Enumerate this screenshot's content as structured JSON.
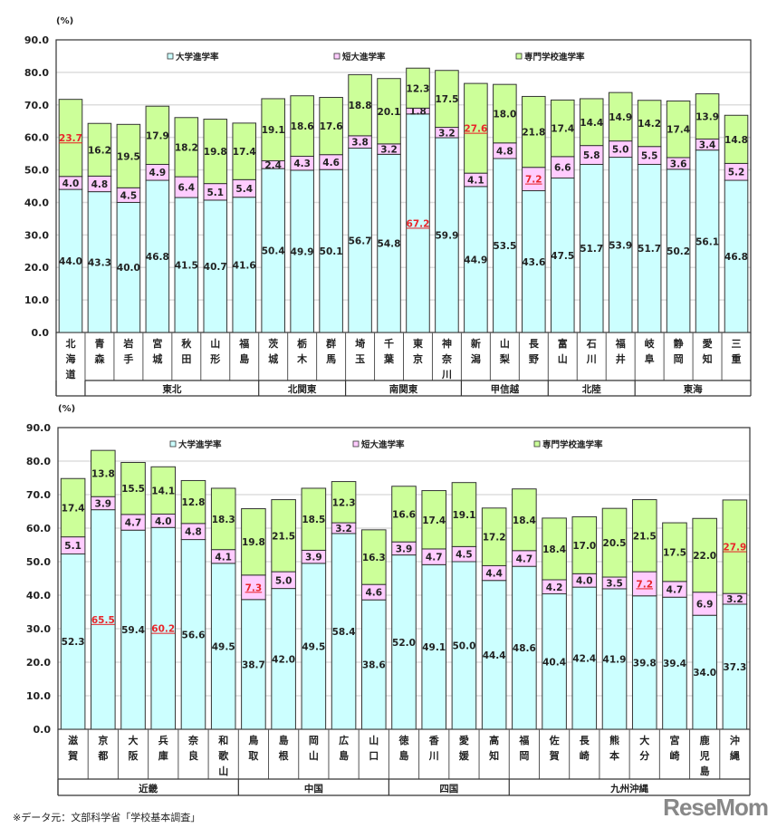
{
  "colors": {
    "university": "#ccffff",
    "junior": "#ffccff",
    "vocational": "#ccff99",
    "highlight": "#e8262b",
    "border": "#222222"
  },
  "footnote": "※データ元：文部科学省「学校基本調査」",
  "logo": "ReseMom",
  "chart_data": [
    {
      "type": "bar",
      "stacked": true,
      "ylabel": "(%)",
      "ylim": [
        0,
        90
      ],
      "yticks": [
        "0.0",
        "10.0",
        "20.0",
        "30.0",
        "40.0",
        "50.0",
        "60.0",
        "70.0",
        "80.0",
        "90.0"
      ],
      "grid": true,
      "legend_placement": "top",
      "categories": [
        "北海道",
        "青森",
        "岩手",
        "宮城",
        "秋田",
        "山形",
        "福島",
        "茨城",
        "栃木",
        "群馬",
        "埼玉",
        "千葉",
        "東京",
        "神奈川",
        "新潟",
        "山梨",
        "長野",
        "富山",
        "石川",
        "福井",
        "岐阜",
        "静岡",
        "愛知",
        "三重"
      ],
      "groups": [
        {
          "name": "",
          "count": 1
        },
        {
          "name": "東北",
          "count": 6
        },
        {
          "name": "北関東",
          "count": 3
        },
        {
          "name": "南関東",
          "count": 4
        },
        {
          "name": "甲信越",
          "count": 3
        },
        {
          "name": "北陸",
          "count": 3
        },
        {
          "name": "東海",
          "count": 4
        }
      ],
      "series": [
        {
          "name": "大学進学率",
          "values": [
            44.0,
            43.3,
            40.0,
            46.8,
            41.5,
            40.7,
            41.6,
            50.4,
            49.9,
            50.1,
            56.7,
            54.8,
            67.2,
            59.9,
            44.9,
            53.5,
            43.6,
            47.5,
            51.7,
            53.9,
            51.7,
            50.2,
            56.1,
            46.8
          ]
        },
        {
          "name": "短大進学率",
          "values": [
            4.0,
            4.8,
            4.5,
            4.9,
            6.4,
            5.1,
            5.4,
            2.4,
            4.3,
            4.6,
            3.8,
            3.2,
            1.8,
            3.2,
            4.1,
            4.8,
            7.2,
            6.6,
            5.8,
            5.0,
            5.5,
            3.6,
            3.4,
            5.2
          ]
        },
        {
          "name": "専門学校進学率",
          "values": [
            23.7,
            16.2,
            19.5,
            17.9,
            18.2,
            19.8,
            17.4,
            19.1,
            18.6,
            17.6,
            18.8,
            20.1,
            12.3,
            17.5,
            27.6,
            18.0,
            21.8,
            17.4,
            14.4,
            14.9,
            14.2,
            17.4,
            13.9,
            14.8
          ]
        }
      ],
      "highlighted": [
        [
          2,
          0
        ],
        [
          0,
          12
        ],
        [
          2,
          14
        ],
        [
          1,
          16
        ]
      ]
    },
    {
      "type": "bar",
      "stacked": true,
      "ylabel": "(%)",
      "ylim": [
        0,
        90
      ],
      "yticks": [
        "0.0",
        "10.0",
        "20.0",
        "30.0",
        "40.0",
        "50.0",
        "60.0",
        "70.0",
        "80.0",
        "90.0"
      ],
      "grid": true,
      "legend_placement": "top",
      "categories": [
        "滋賀",
        "京都",
        "大阪",
        "兵庫",
        "奈良",
        "和歌山",
        "鳥取",
        "島根",
        "岡山",
        "広島",
        "山口",
        "徳島",
        "香川",
        "愛媛",
        "高知",
        "福岡",
        "佐賀",
        "長崎",
        "熊本",
        "大分",
        "宮崎",
        "鹿児島",
        "沖縄"
      ],
      "groups": [
        {
          "name": "近畿",
          "count": 6
        },
        {
          "name": "中国",
          "count": 5
        },
        {
          "name": "四国",
          "count": 4
        },
        {
          "name": "九州沖縄",
          "count": 8
        }
      ],
      "series": [
        {
          "name": "大学進学率",
          "values": [
            52.3,
            65.5,
            59.4,
            60.2,
            56.6,
            49.5,
            38.7,
            42.0,
            49.5,
            58.4,
            38.6,
            52.0,
            49.1,
            50.0,
            44.4,
            48.6,
            40.4,
            42.4,
            41.9,
            39.8,
            39.4,
            34.0,
            37.3
          ]
        },
        {
          "name": "短大進学率",
          "values": [
            5.1,
            3.9,
            4.7,
            4.0,
            4.8,
            4.1,
            7.3,
            5.0,
            3.9,
            3.2,
            4.6,
            3.9,
            4.7,
            4.5,
            4.4,
            4.7,
            4.2,
            4.0,
            3.5,
            7.2,
            4.7,
            6.9,
            3.2
          ]
        },
        {
          "name": "専門学校進学率",
          "values": [
            17.4,
            13.8,
            15.5,
            14.1,
            12.8,
            18.3,
            19.8,
            21.5,
            18.5,
            12.3,
            16.3,
            16.6,
            17.4,
            19.1,
            17.2,
            18.4,
            18.4,
            17.0,
            20.5,
            21.5,
            17.5,
            22.0,
            27.9
          ]
        }
      ],
      "highlighted": [
        [
          0,
          1
        ],
        [
          0,
          3
        ],
        [
          1,
          6
        ],
        [
          1,
          19
        ],
        [
          2,
          22
        ]
      ]
    }
  ]
}
